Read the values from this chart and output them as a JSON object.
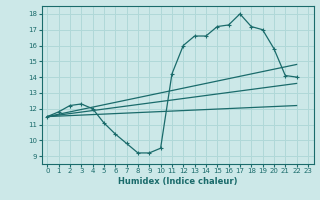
{
  "xlabel": "Humidex (Indice chaleur)",
  "bg_color": "#cce8e8",
  "grid_color": "#b0d8d8",
  "line_color": "#1a6b6b",
  "xlim": [
    -0.5,
    23.5
  ],
  "ylim": [
    8.5,
    18.5
  ],
  "xticks": [
    0,
    1,
    2,
    3,
    4,
    5,
    6,
    7,
    8,
    9,
    10,
    11,
    12,
    13,
    14,
    15,
    16,
    17,
    18,
    19,
    20,
    21,
    22,
    23
  ],
  "yticks": [
    9,
    10,
    11,
    12,
    13,
    14,
    15,
    16,
    17,
    18
  ],
  "series": [
    {
      "x": [
        0,
        1,
        2,
        3,
        4,
        5,
        6,
        7,
        8,
        9,
        10,
        11,
        12,
        13,
        14,
        15,
        16,
        17,
        18,
        19,
        20,
        21,
        22
      ],
      "y": [
        11.5,
        11.8,
        12.2,
        12.3,
        12.0,
        11.1,
        10.4,
        9.8,
        9.2,
        9.2,
        9.5,
        14.2,
        16.0,
        16.6,
        16.6,
        17.2,
        17.3,
        18.0,
        17.2,
        17.0,
        15.8,
        14.1,
        14.0
      ],
      "marker": true
    },
    {
      "x": [
        0,
        22
      ],
      "y": [
        11.5,
        12.2
      ],
      "marker": false
    },
    {
      "x": [
        0,
        22
      ],
      "y": [
        11.5,
        13.6
      ],
      "marker": false
    },
    {
      "x": [
        0,
        22
      ],
      "y": [
        11.5,
        14.8
      ],
      "marker": false
    }
  ]
}
